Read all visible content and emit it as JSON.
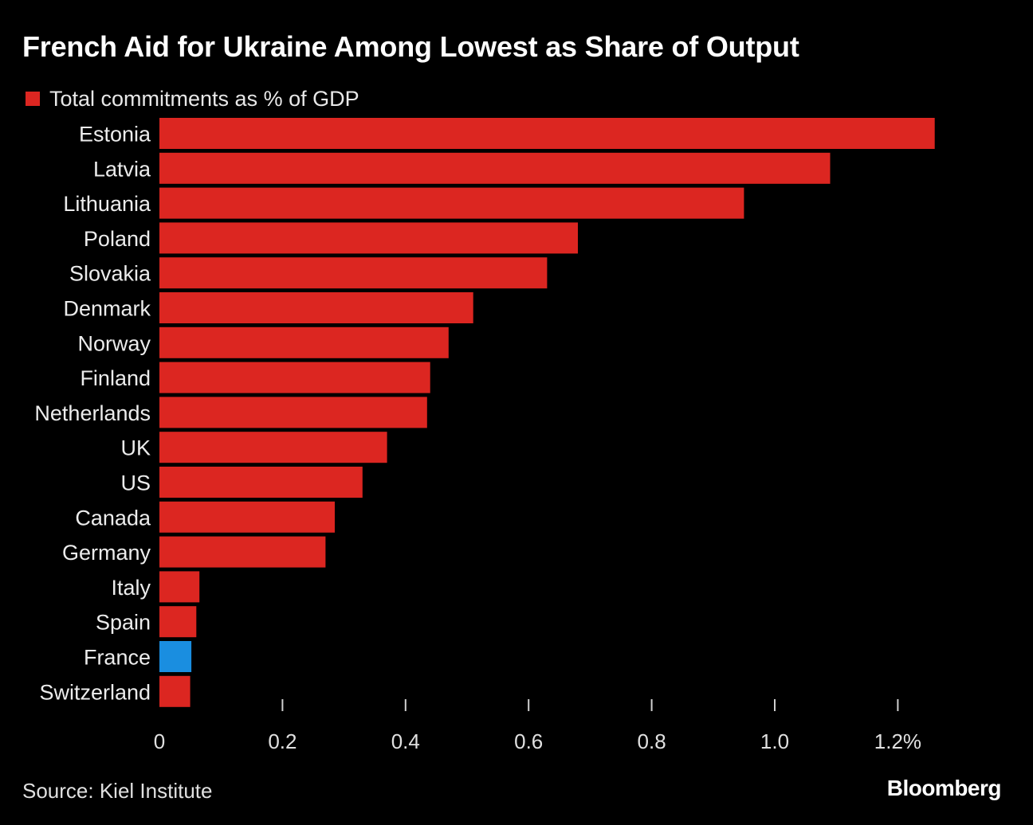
{
  "chart_data": {
    "type": "bar",
    "orientation": "horizontal",
    "title": "French Aid for Ukraine Among Lowest as Share of Output",
    "legend": [
      "Total commitments as % of GDP"
    ],
    "legend_position": "top-left",
    "categories": [
      "Estonia",
      "Latvia",
      "Lithuania",
      "Poland",
      "Slovakia",
      "Denmark",
      "Norway",
      "Finland",
      "Netherlands",
      "UK",
      "US",
      "Canada",
      "Germany",
      "Italy",
      "Spain",
      "France",
      "Switzerland"
    ],
    "values": [
      1.26,
      1.09,
      0.95,
      0.68,
      0.63,
      0.51,
      0.47,
      0.44,
      0.435,
      0.37,
      0.33,
      0.285,
      0.27,
      0.065,
      0.06,
      0.052,
      0.05
    ],
    "highlight": "France",
    "xlim": [
      0,
      1.3
    ],
    "xticks": [
      0,
      0.2,
      0.4,
      0.6,
      0.8,
      1.0,
      1.2
    ],
    "xtick_labels": [
      "0",
      "0.2",
      "0.4",
      "0.6",
      "0.8",
      "1.0",
      "1.2%"
    ],
    "xlabel": "",
    "ylabel": "",
    "grid": false
  },
  "colors": {
    "bar": "#dc2621",
    "highlight": "#1a8ee0",
    "background": "#000000",
    "text": "#ffffff",
    "tick": "#d0d0d0"
  },
  "source": "Source: Kiel Institute",
  "brand": "Bloomberg"
}
